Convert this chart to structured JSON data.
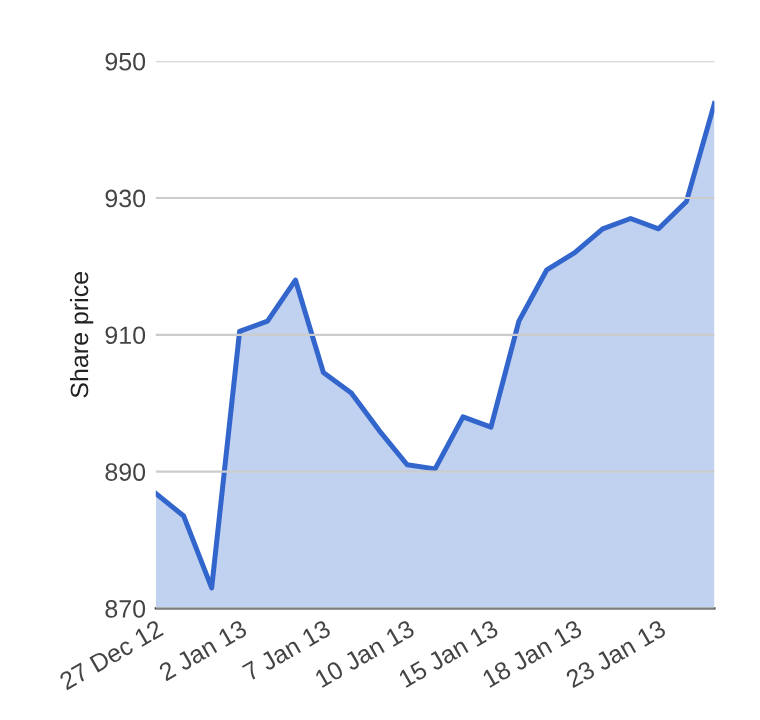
{
  "chart_data": {
    "type": "area",
    "ylabel": "Share price",
    "categories": [
      "27 Dec 12",
      null,
      null,
      "2 Jan 13",
      null,
      null,
      "7 Jan 13",
      null,
      null,
      "10 Jan 13",
      null,
      null,
      "15 Jan 13",
      null,
      null,
      "18 Jan 13",
      null,
      null,
      "23 Jan 13",
      null,
      null
    ],
    "series": [
      {
        "color": "#3366cc",
        "values": [
          886.8,
          883.5,
          873,
          910.5,
          912,
          918,
          904.5,
          901.5,
          896,
          891,
          890.4,
          898,
          896.5,
          912,
          919.5,
          922,
          925.5,
          927,
          925.5,
          929.5,
          943.8
        ]
      }
    ],
    "ylim": [
      870,
      950
    ],
    "yticks": [
      870,
      890,
      910,
      930,
      950
    ],
    "grid": "y"
  }
}
